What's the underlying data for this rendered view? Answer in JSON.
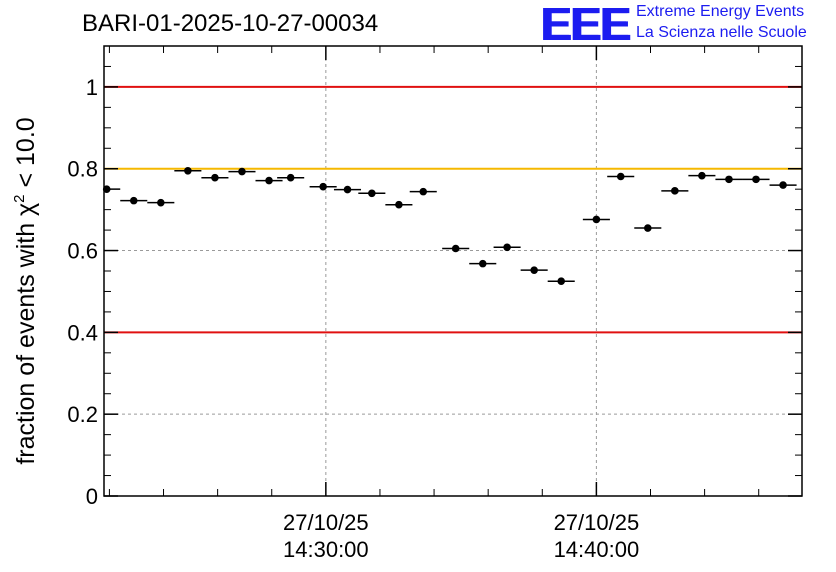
{
  "header": {
    "title": "BARI-01-2025-10-27-00034",
    "logo_text": "EEE",
    "logo_line1": "Extreme Energy Events",
    "logo_line2": "La Scienza nelle Scuole"
  },
  "colors": {
    "red": "#e01010",
    "orange": "#f5b800",
    "logo": "#1c1cf0"
  },
  "chart_data": {
    "type": "scatter",
    "title": "BARI-01-2025-10-27-00034",
    "xlabel": "",
    "ylabel": "fraction of events with χ² < 10.0",
    "ylabel_base": "fraction of events with χ",
    "ylabel_sup": "2",
    "ylabel_tail": " < 10.0",
    "ylim": [
      0,
      1.1
    ],
    "y_ticks": [
      0,
      0.2,
      0.4,
      0.6,
      0.8,
      1
    ],
    "y_tick_labels": [
      "0",
      "0.2",
      "0.4",
      "0.6",
      "0.8",
      "1"
    ],
    "xlim_minutes": [
      -8.2,
      17.6
    ],
    "x_ticks": [
      {
        "value": 0,
        "line1": "27/10/25",
        "line2": "14:30:00"
      },
      {
        "value": 10,
        "line1": "27/10/25",
        "line2": "14:40:00"
      }
    ],
    "x_unit": "minutes after 14:30:00",
    "grid": true,
    "reference_lines": [
      {
        "y": 1.0,
        "color": "#e01010"
      },
      {
        "y": 0.8,
        "color": "#f5b800"
      },
      {
        "y": 0.4,
        "color": "#e01010"
      }
    ],
    "bin_width_minutes": 1.0,
    "series": [
      {
        "name": "fraction",
        "x": [
          -8.1,
          -7.1,
          -6.1,
          -5.1,
          -4.1,
          -3.1,
          -2.1,
          -1.3,
          -0.1,
          0.8,
          1.7,
          2.7,
          3.6,
          4.8,
          5.8,
          6.7,
          7.7,
          8.7,
          10.0,
          10.9,
          11.9,
          12.9,
          13.9,
          14.9,
          15.9,
          16.9
        ],
        "y": [
          0.75,
          0.722,
          0.717,
          0.795,
          0.778,
          0.793,
          0.771,
          0.778,
          0.756,
          0.749,
          0.74,
          0.712,
          0.744,
          0.605,
          0.568,
          0.608,
          0.552,
          0.525,
          0.676,
          0.781,
          0.655,
          0.746,
          0.783,
          0.774,
          0.774,
          0.76
        ]
      }
    ]
  }
}
